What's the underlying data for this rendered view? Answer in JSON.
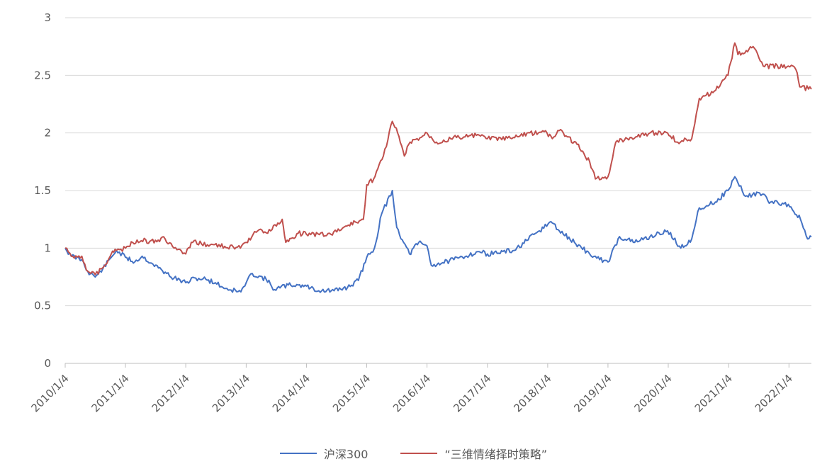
{
  "chart_data": {
    "type": "line",
    "title": "",
    "xlabel": "",
    "ylabel": "",
    "ylim": [
      0,
      3
    ],
    "yticks": [
      "0",
      "0.5",
      "1",
      "1.5",
      "2",
      "2.5",
      "3"
    ],
    "xticks": [
      "2010/1/4",
      "2011/1/4",
      "2012/1/4",
      "2013/1/4",
      "2014/1/4",
      "2015/1/4",
      "2016/1/4",
      "2017/1/4",
      "2018/1/4",
      "2019/1/4",
      "2020/1/4",
      "2021/1/4",
      "2022/1/4"
    ],
    "grid": "horizontal",
    "legend_position": "bottom",
    "series": [
      {
        "name": "沪深300",
        "color": "#4472c4",
        "points": [
          [
            "2010/1/4",
            1.0
          ],
          [
            "2010/2/10",
            0.93
          ],
          [
            "2010/4/15",
            0.9
          ],
          [
            "2010/5/20",
            0.8
          ],
          [
            "2010/7/5",
            0.75
          ],
          [
            "2010/8/20",
            0.82
          ],
          [
            "2010/10/10",
            0.92
          ],
          [
            "2010/11/10",
            0.98
          ],
          [
            "2011/1/4",
            0.92
          ],
          [
            "2011/3/1",
            0.88
          ],
          [
            "2011/4/15",
            0.93
          ],
          [
            "2011/6/20",
            0.86
          ],
          [
            "2011/9/10",
            0.78
          ],
          [
            "2011/10/25",
            0.74
          ],
          [
            "2012/1/4",
            0.7
          ],
          [
            "2012/3/5",
            0.74
          ],
          [
            "2012/5/5",
            0.73
          ],
          [
            "2012/7/1",
            0.7
          ],
          [
            "2012/9/1",
            0.65
          ],
          [
            "2012/12/3",
            0.62
          ],
          [
            "2013/1/4",
            0.7
          ],
          [
            "2013/2/10",
            0.78
          ],
          [
            "2013/5/5",
            0.73
          ],
          [
            "2013/6/25",
            0.64
          ],
          [
            "2013/9/15",
            0.68
          ],
          [
            "2013/11/15",
            0.68
          ],
          [
            "2014/1/4",
            0.67
          ],
          [
            "2014/3/20",
            0.63
          ],
          [
            "2014/6/20",
            0.63
          ],
          [
            "2014/9/10",
            0.66
          ],
          [
            "2014/11/15",
            0.72
          ],
          [
            "2015/1/4",
            0.92
          ],
          [
            "2015/2/20",
            1.0
          ],
          [
            "2015/4/5",
            1.3
          ],
          [
            "2015/6/8",
            1.5
          ],
          [
            "2015/7/5",
            1.18
          ],
          [
            "2015/8/15",
            1.05
          ],
          [
            "2015/9/20",
            0.95
          ],
          [
            "2015/11/15",
            1.05
          ],
          [
            "2016/1/4",
            1.02
          ],
          [
            "2016/1/30",
            0.85
          ],
          [
            "2016/6/15",
            0.9
          ],
          [
            "2016/11/15",
            0.97
          ],
          [
            "2017/1/4",
            0.95
          ],
          [
            "2017/6/15",
            0.98
          ],
          [
            "2017/11/15",
            1.15
          ],
          [
            "2018/1/24",
            1.23
          ],
          [
            "2018/3/15",
            1.15
          ],
          [
            "2018/6/15",
            1.05
          ],
          [
            "2018/9/15",
            0.95
          ],
          [
            "2018/11/15",
            0.9
          ],
          [
            "2019/1/4",
            0.88
          ],
          [
            "2019/3/15",
            1.1
          ],
          [
            "2019/6/15",
            1.05
          ],
          [
            "2019/9/15",
            1.1
          ],
          [
            "2019/12/31",
            1.15
          ],
          [
            "2020/3/20",
            1.0
          ],
          [
            "2020/5/25",
            1.08
          ],
          [
            "2020/7/10",
            1.35
          ],
          [
            "2020/10/15",
            1.4
          ],
          [
            "2020/12/31",
            1.5
          ],
          [
            "2021/2/10",
            1.62
          ],
          [
            "2021/4/15",
            1.45
          ],
          [
            "2021/7/10",
            1.48
          ],
          [
            "2021/9/15",
            1.4
          ],
          [
            "2021/12/31",
            1.38
          ],
          [
            "2022/3/15",
            1.25
          ],
          [
            "2022/4/27",
            1.08
          ],
          [
            "2022/5/20",
            1.1
          ]
        ]
      },
      {
        "name": "“三维情绪择时策略”",
        "color": "#c0504d",
        "points": [
          [
            "2010/1/4",
            1.0
          ],
          [
            "2010/2/10",
            0.93
          ],
          [
            "2010/4/15",
            0.93
          ],
          [
            "2010/5/20",
            0.8
          ],
          [
            "2010/7/5",
            0.77
          ],
          [
            "2010/8/20",
            0.83
          ],
          [
            "2010/10/10",
            0.95
          ],
          [
            "2010/11/10",
            0.98
          ],
          [
            "2011/1/4",
            1.0
          ],
          [
            "2011/3/15",
            1.07
          ],
          [
            "2011/6/1",
            1.06
          ],
          [
            "2011/9/1",
            1.08
          ],
          [
            "2011/10/25",
            1.0
          ],
          [
            "2012/1/4",
            0.95
          ],
          [
            "2012/2/15",
            1.05
          ],
          [
            "2012/6/1",
            1.03
          ],
          [
            "2012/11/30",
            1.0
          ],
          [
            "2013/1/4",
            1.05
          ],
          [
            "2013/2/15",
            1.12
          ],
          [
            "2013/3/15",
            1.15
          ],
          [
            "2013/6/1",
            1.15
          ],
          [
            "2013/8/10",
            1.25
          ],
          [
            "2013/9/1",
            1.05
          ],
          [
            "2013/11/15",
            1.13
          ],
          [
            "2014/1/4",
            1.12
          ],
          [
            "2014/6/1",
            1.12
          ],
          [
            "2014/9/15",
            1.2
          ],
          [
            "2014/12/15",
            1.25
          ],
          [
            "2015/1/4",
            1.55
          ],
          [
            "2015/2/15",
            1.6
          ],
          [
            "2015/4/15",
            1.8
          ],
          [
            "2015/6/8",
            2.1
          ],
          [
            "2015/7/10",
            2.0
          ],
          [
            "2015/8/20",
            1.8
          ],
          [
            "2015/9/15",
            1.9
          ],
          [
            "2016/1/4",
            2.0
          ],
          [
            "2016/3/1",
            1.92
          ],
          [
            "2016/7/1",
            1.96
          ],
          [
            "2016/11/15",
            1.98
          ],
          [
            "2017/1/4",
            1.95
          ],
          [
            "2017/6/1",
            1.95
          ],
          [
            "2017/9/1",
            2.0
          ],
          [
            "2017/12/31",
            2.0
          ],
          [
            "2018/2/1",
            1.95
          ],
          [
            "2018/3/15",
            2.02
          ],
          [
            "2018/7/1",
            1.9
          ],
          [
            "2018/9/15",
            1.75
          ],
          [
            "2018/10/20",
            1.6
          ],
          [
            "2019/1/4",
            1.62
          ],
          [
            "2019/2/20",
            1.92
          ],
          [
            "2019/5/1",
            1.95
          ],
          [
            "2019/9/15",
            2.0
          ],
          [
            "2019/12/31",
            2.0
          ],
          [
            "2020/3/1",
            1.92
          ],
          [
            "2020/5/25",
            1.95
          ],
          [
            "2020/7/10",
            2.3
          ],
          [
            "2020/10/1",
            2.35
          ],
          [
            "2020/12/31",
            2.5
          ],
          [
            "2021/2/10",
            2.78
          ],
          [
            "2021/3/1",
            2.68
          ],
          [
            "2021/6/1",
            2.75
          ],
          [
            "2021/8/1",
            2.58
          ],
          [
            "2021/12/31",
            2.58
          ],
          [
            "2022/2/15",
            2.55
          ],
          [
            "2022/3/10",
            2.4
          ],
          [
            "2022/5/20",
            2.38
          ]
        ]
      }
    ]
  }
}
